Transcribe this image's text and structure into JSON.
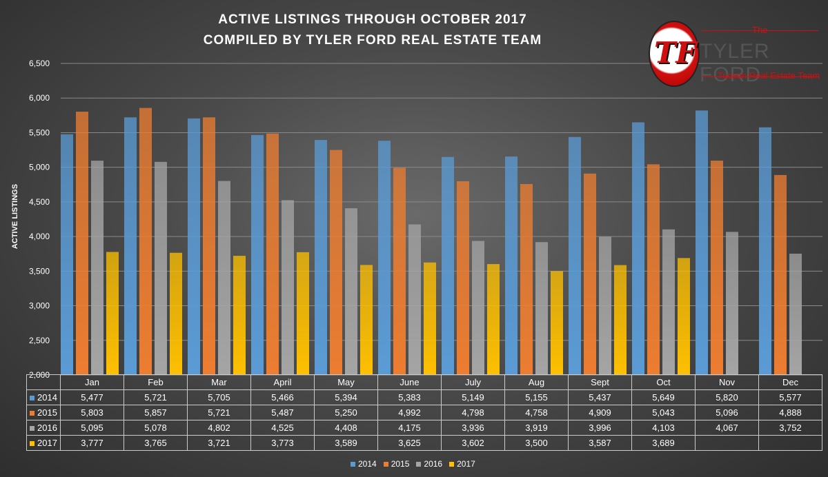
{
  "chart_data": {
    "type": "bar",
    "title": "ACTIVE LISTINGS THROUGH OCTOBER 2017",
    "subtitle": "COMPILED BY TYLER FORD REAL ESTATE TEAM",
    "xlabel": "",
    "ylabel": "ACTIVE LISTINGS",
    "ylim": [
      2000,
      6500
    ],
    "yticks": [
      "2,000",
      "2,500",
      "3,000",
      "3,500",
      "4,000",
      "4,500",
      "5,000",
      "5,500",
      "6,000",
      "6,500"
    ],
    "grid": true,
    "legend_position": "bottom",
    "categories": [
      "Jan",
      "Feb",
      "Mar",
      "April",
      "May",
      "June",
      "July",
      "Aug",
      "Sept",
      "Oct",
      "Nov",
      "Dec"
    ],
    "series": [
      {
        "name": "2014",
        "color": "#5b9bd5",
        "values": [
          5477,
          5721,
          5705,
          5466,
          5394,
          5383,
          5149,
          5155,
          5437,
          5649,
          5820,
          5577
        ],
        "labels": [
          "5,477",
          "5,721",
          "5,705",
          "5,466",
          "5,394",
          "5,383",
          "5,149",
          "5,155",
          "5,437",
          "5,649",
          "5,820",
          "5,577"
        ]
      },
      {
        "name": "2015",
        "color": "#ed7d31",
        "values": [
          5803,
          5857,
          5721,
          5487,
          5250,
          4992,
          4798,
          4758,
          4909,
          5043,
          5096,
          4888
        ],
        "labels": [
          "5,803",
          "5,857",
          "5,721",
          "5,487",
          "5,250",
          "4,992",
          "4,798",
          "4,758",
          "4,909",
          "5,043",
          "5,096",
          "4,888"
        ]
      },
      {
        "name": "2016",
        "color": "#a5a5a5",
        "values": [
          5095,
          5078,
          4802,
          4525,
          4408,
          4175,
          3936,
          3919,
          3996,
          4103,
          4067,
          3752
        ],
        "labels": [
          "5,095",
          "5,078",
          "4,802",
          "4,525",
          "4,408",
          "4,175",
          "3,936",
          "3,919",
          "3,996",
          "4,103",
          "4,067",
          "3,752"
        ]
      },
      {
        "name": "2017",
        "color": "#ffc000",
        "values": [
          3777,
          3765,
          3721,
          3773,
          3589,
          3625,
          3602,
          3500,
          3587,
          3689,
          null,
          null
        ],
        "labels": [
          "3,777",
          "3,765",
          "3,721",
          "3,773",
          "3,589",
          "3,625",
          "3,602",
          "3,500",
          "3,587",
          "3,689",
          "",
          ""
        ]
      }
    ]
  },
  "logo": {
    "monogram": "TF",
    "the": "The",
    "name": "TYLER FORD",
    "tagline": "Tucson Real Estate Team"
  }
}
